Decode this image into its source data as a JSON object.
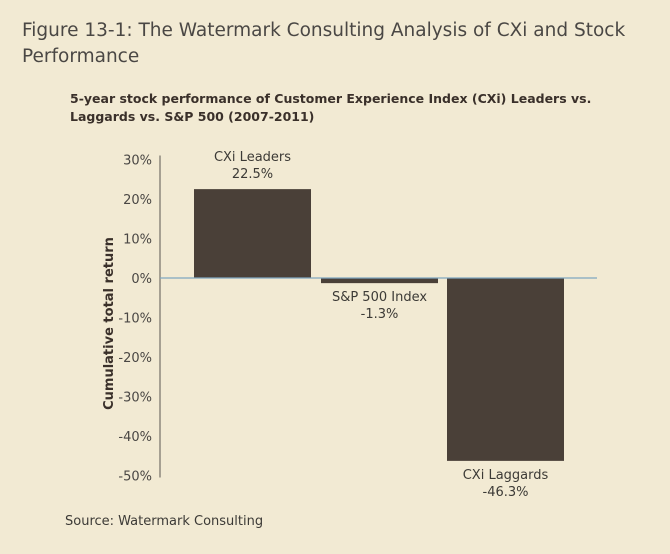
{
  "figure_title": "Figure 13-1: The Watermark Consulting Analysis of CXi and Stock Performance",
  "source": "Source: Watermark Consulting",
  "chart_data": {
    "type": "bar",
    "title": "5-year stock performance of Customer Experience Index (CXi) Leaders vs. Laggards vs. S&P 500 (2007-2011)",
    "xlabel": "",
    "ylabel": "Cumulative total return",
    "ylim": [
      -50,
      30
    ],
    "yticks": [
      30,
      20,
      10,
      0,
      -10,
      -20,
      -30,
      -40,
      -50
    ],
    "ytick_labels": [
      "30%",
      "20%",
      "10%",
      "0%",
      "-10%",
      "-20%",
      "-30%",
      "-40%",
      "-50%"
    ],
    "categories": [
      "CXi Leaders",
      "S&P 500 Index",
      "CXi Laggards"
    ],
    "values": [
      22.5,
      -1.3,
      -46.3
    ],
    "data_labels": [
      "22.5%",
      "-1.3%",
      "-46.3%"
    ],
    "grid": false,
    "legend": "none",
    "colors": {
      "bar": "#4a4038",
      "zero_line": "#7fa6c0",
      "background": "#f2ead3"
    }
  }
}
